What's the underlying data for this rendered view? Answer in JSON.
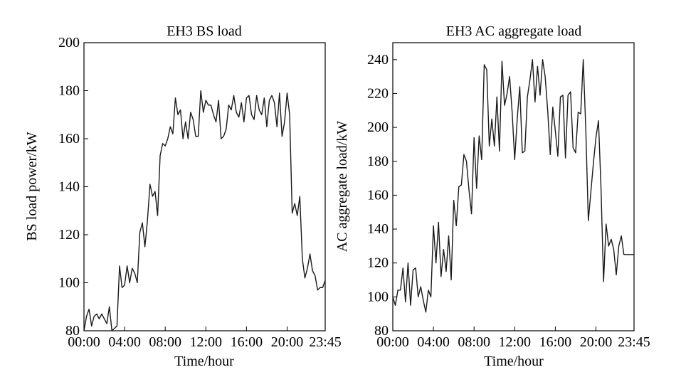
{
  "chart_data": [
    {
      "type": "line",
      "title": "EH3 BS load",
      "xlabel": "Time/hour",
      "ylabel": "BS load power/kW",
      "ylim": [
        80,
        200
      ],
      "xlim": [
        0,
        95
      ],
      "grid": false,
      "color": "#1a1a1a",
      "xticks": [
        {
          "pos": 0,
          "label": "00:00"
        },
        {
          "pos": 16,
          "label": "04:00"
        },
        {
          "pos": 32,
          "label": "08:00"
        },
        {
          "pos": 48,
          "label": "12:00"
        },
        {
          "pos": 64,
          "label": "16:00"
        },
        {
          "pos": 80,
          "label": "20:00"
        },
        {
          "pos": 95,
          "label": "23:45"
        }
      ],
      "yticks": [
        "80",
        "100",
        "120",
        "140",
        "160",
        "180",
        "200"
      ],
      "x": [
        0,
        1,
        2,
        3,
        4,
        5,
        6,
        7,
        8,
        9,
        10,
        11,
        12,
        13,
        14,
        15,
        16,
        17,
        18,
        19,
        20,
        21,
        22,
        23,
        24,
        25,
        26,
        27,
        28,
        29,
        30,
        31,
        32,
        33,
        34,
        35,
        36,
        37,
        38,
        39,
        40,
        41,
        42,
        43,
        44,
        45,
        46,
        47,
        48,
        49,
        50,
        51,
        52,
        53,
        54,
        55,
        56,
        57,
        58,
        59,
        60,
        61,
        62,
        63,
        64,
        65,
        66,
        67,
        68,
        69,
        70,
        71,
        72,
        73,
        74,
        75,
        76,
        77,
        78,
        79,
        80,
        81,
        82,
        83,
        84,
        85,
        86,
        87,
        88,
        89,
        90,
        91,
        92,
        93,
        94,
        95
      ],
      "values": [
        80,
        86,
        89,
        82,
        86,
        87,
        85,
        87,
        85,
        83,
        90,
        80,
        81,
        82,
        107,
        98,
        99,
        107,
        100,
        106,
        104,
        100,
        121,
        125,
        115,
        126,
        141,
        136,
        138,
        128,
        153,
        158,
        157,
        160,
        165,
        162,
        177,
        170,
        172,
        160,
        167,
        160,
        171,
        168,
        161,
        161,
        180,
        171,
        176,
        174,
        174,
        170,
        167,
        176,
        160,
        161,
        164,
        174,
        172,
        178,
        171,
        169,
        175,
        167,
        177,
        178,
        170,
        168,
        178,
        172,
        170,
        177,
        165,
        176,
        178,
        175,
        165,
        179,
        161,
        167,
        179,
        170,
        129,
        133,
        128,
        136,
        110,
        102,
        106,
        112,
        105,
        103,
        97,
        98,
        98,
        101
      ]
    },
    {
      "type": "line",
      "title": "EH3 AC aggregate load",
      "xlabel": "Time/hour",
      "ylabel": "AC aggregate load/kW",
      "ylim": [
        80,
        250
      ],
      "xlim": [
        0,
        95
      ],
      "grid": false,
      "color": "#1a1a1a",
      "xticks": [
        {
          "pos": 0,
          "label": "00:00"
        },
        {
          "pos": 16,
          "label": "04:00"
        },
        {
          "pos": 32,
          "label": "08:00"
        },
        {
          "pos": 48,
          "label": "12:00"
        },
        {
          "pos": 64,
          "label": "16:00"
        },
        {
          "pos": 80,
          "label": "20:00"
        },
        {
          "pos": 95,
          "label": "23:45"
        }
      ],
      "yticks": [
        "80",
        "100",
        "120",
        "140",
        "160",
        "180",
        "200",
        "220",
        "240"
      ],
      "x": [
        0,
        1,
        2,
        3,
        4,
        5,
        6,
        7,
        8,
        9,
        10,
        11,
        12,
        13,
        14,
        15,
        16,
        17,
        18,
        19,
        20,
        21,
        22,
        23,
        24,
        25,
        26,
        27,
        28,
        29,
        30,
        31,
        32,
        33,
        34,
        35,
        36,
        37,
        38,
        39,
        40,
        41,
        42,
        43,
        44,
        45,
        46,
        47,
        48,
        49,
        50,
        51,
        52,
        53,
        54,
        55,
        56,
        57,
        58,
        59,
        60,
        61,
        62,
        63,
        64,
        65,
        66,
        67,
        68,
        69,
        70,
        71,
        72,
        73,
        74,
        75,
        76,
        77,
        78,
        79,
        80,
        81,
        82,
        83,
        84,
        85,
        86,
        87,
        88,
        89,
        90,
        91,
        92,
        93,
        94,
        95
      ],
      "values": [
        100,
        95,
        104,
        104,
        117,
        97,
        120,
        95,
        116,
        117,
        100,
        106,
        98,
        91,
        104,
        100,
        142,
        120,
        144,
        112,
        128,
        115,
        136,
        110,
        157,
        142,
        165,
        166,
        184,
        180,
        163,
        149,
        194,
        164,
        195,
        181,
        237,
        234,
        189,
        205,
        189,
        218,
        186,
        239,
        213,
        220,
        230,
        209,
        181,
        205,
        224,
        185,
        186,
        218,
        228,
        240,
        215,
        236,
        219,
        240,
        230,
        210,
        184,
        212,
        198,
        183,
        218,
        219,
        182,
        219,
        221,
        188,
        185,
        209,
        208,
        240,
        199,
        145,
        162,
        179,
        194,
        204,
        164,
        109,
        143,
        130,
        134,
        128,
        113,
        130,
        136,
        125,
        125,
        125,
        125,
        125
      ]
    }
  ]
}
